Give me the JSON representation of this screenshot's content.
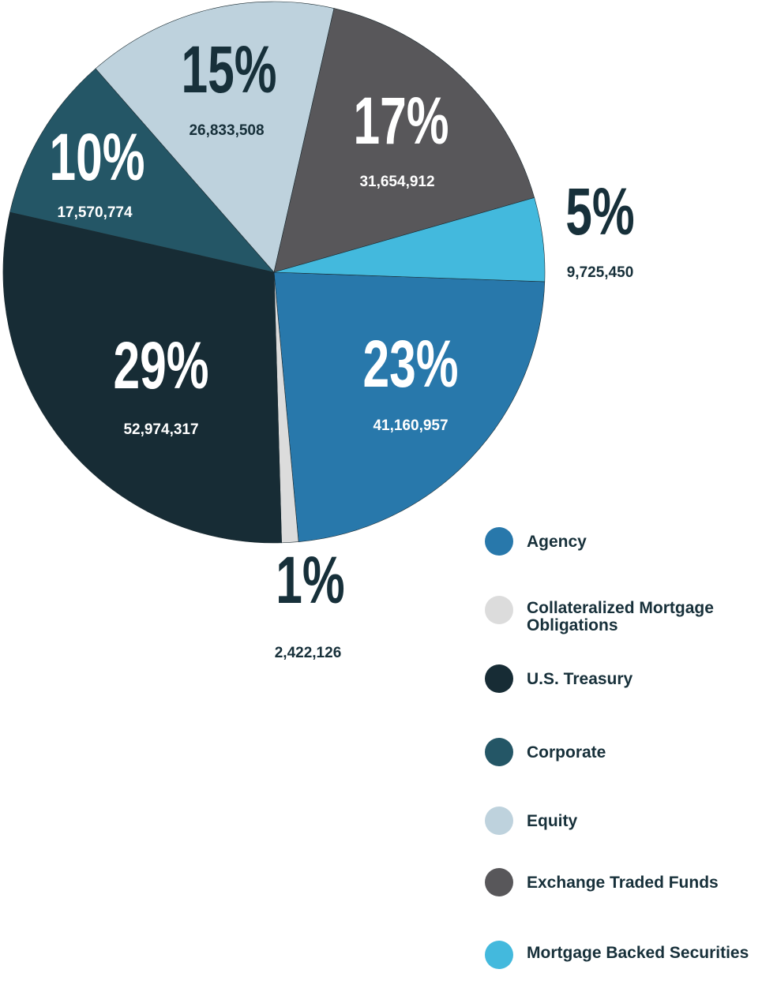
{
  "chart_data": {
    "type": "pie",
    "categories": [
      "Agency",
      "Collateralized Mortgage Obligations",
      "U.S. Treasury",
      "Corporate",
      "Equity",
      "Exchange Traded Funds",
      "Mortgage Backed Securities"
    ],
    "values": [
      23,
      1,
      29,
      10,
      15,
      17,
      5
    ],
    "value_labels": [
      "23%",
      "1%",
      "29%",
      "10%",
      "15%",
      "17%",
      "5%"
    ],
    "amounts": [
      41160957,
      2422126,
      52974317,
      17570774,
      26833508,
      31654912,
      9725450
    ],
    "amount_labels": [
      "41,160,957",
      "2,422,126",
      "52,974,317",
      "17,570,774",
      "26,833,508",
      "31,654,912",
      "9,725,450"
    ],
    "colors": [
      "#2878ab",
      "#dcdcdc",
      "#172c35",
      "#245666",
      "#bed2dd",
      "#58575a",
      "#43b9dd"
    ],
    "legend": "bottom-right"
  }
}
